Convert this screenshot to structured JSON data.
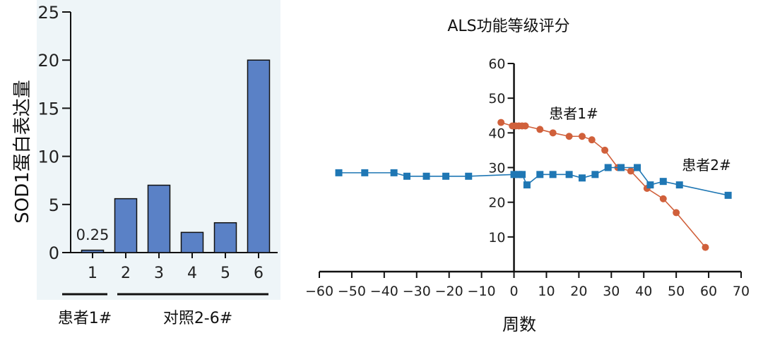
{
  "chart_data": [
    {
      "type": "bar",
      "ylabel": "SOD1蛋白表达量",
      "ylim": [
        0,
        25
      ],
      "yticks": [
        "0",
        "5",
        "10",
        "15",
        "20",
        "25"
      ],
      "categories": [
        "1",
        "2",
        "3",
        "4",
        "5",
        "6"
      ],
      "values": [
        0.25,
        5.6,
        7.0,
        2.1,
        3.1,
        20.0
      ],
      "value_labels": [
        "0.25"
      ],
      "group_labels": [
        "患者1#",
        "对照2-6#"
      ],
      "bar_color": "#5a81c6",
      "panel_background": "#eef5f8"
    },
    {
      "type": "line",
      "title": "ALS功能等级评分",
      "xlabel": "周数",
      "xlim": [
        -60,
        70
      ],
      "ylim": [
        0,
        60
      ],
      "xticks": [
        "−60",
        "−50",
        "−40",
        "−30",
        "−20",
        "−10",
        "0",
        "10",
        "20",
        "30",
        "40",
        "50",
        "60",
        "70"
      ],
      "yticks": [
        "10",
        "20",
        "30",
        "40",
        "50",
        "60"
      ],
      "series": [
        {
          "name": "患者1#",
          "color": "#d0603b",
          "marker": "circle",
          "x": [
            -4,
            -0.5,
            0.5,
            1.5,
            2.5,
            3.5,
            8,
            12,
            17,
            21,
            24,
            28,
            32,
            36,
            41,
            46,
            50,
            59
          ],
          "y": [
            43,
            42,
            42,
            42,
            42,
            42,
            41,
            40,
            39,
            39,
            38,
            35,
            30,
            29,
            24,
            21,
            17,
            7
          ]
        },
        {
          "name": "患者2#",
          "color": "#1f77b4",
          "marker": "square",
          "x": [
            -54,
            -46,
            -37,
            -33,
            -27,
            -21,
            -14,
            0,
            1.5,
            2.5,
            4,
            8,
            12,
            17,
            21,
            25,
            29,
            33,
            38,
            42,
            46,
            51,
            66
          ],
          "y": [
            28.5,
            28.5,
            28.5,
            27.5,
            27.5,
            27.5,
            27.5,
            28,
            28,
            28,
            25,
            28,
            28,
            28,
            27,
            28,
            30,
            30,
            30,
            25,
            26,
            25,
            22
          ]
        }
      ],
      "series_label_near": [
        "top-middle",
        "right"
      ]
    }
  ]
}
